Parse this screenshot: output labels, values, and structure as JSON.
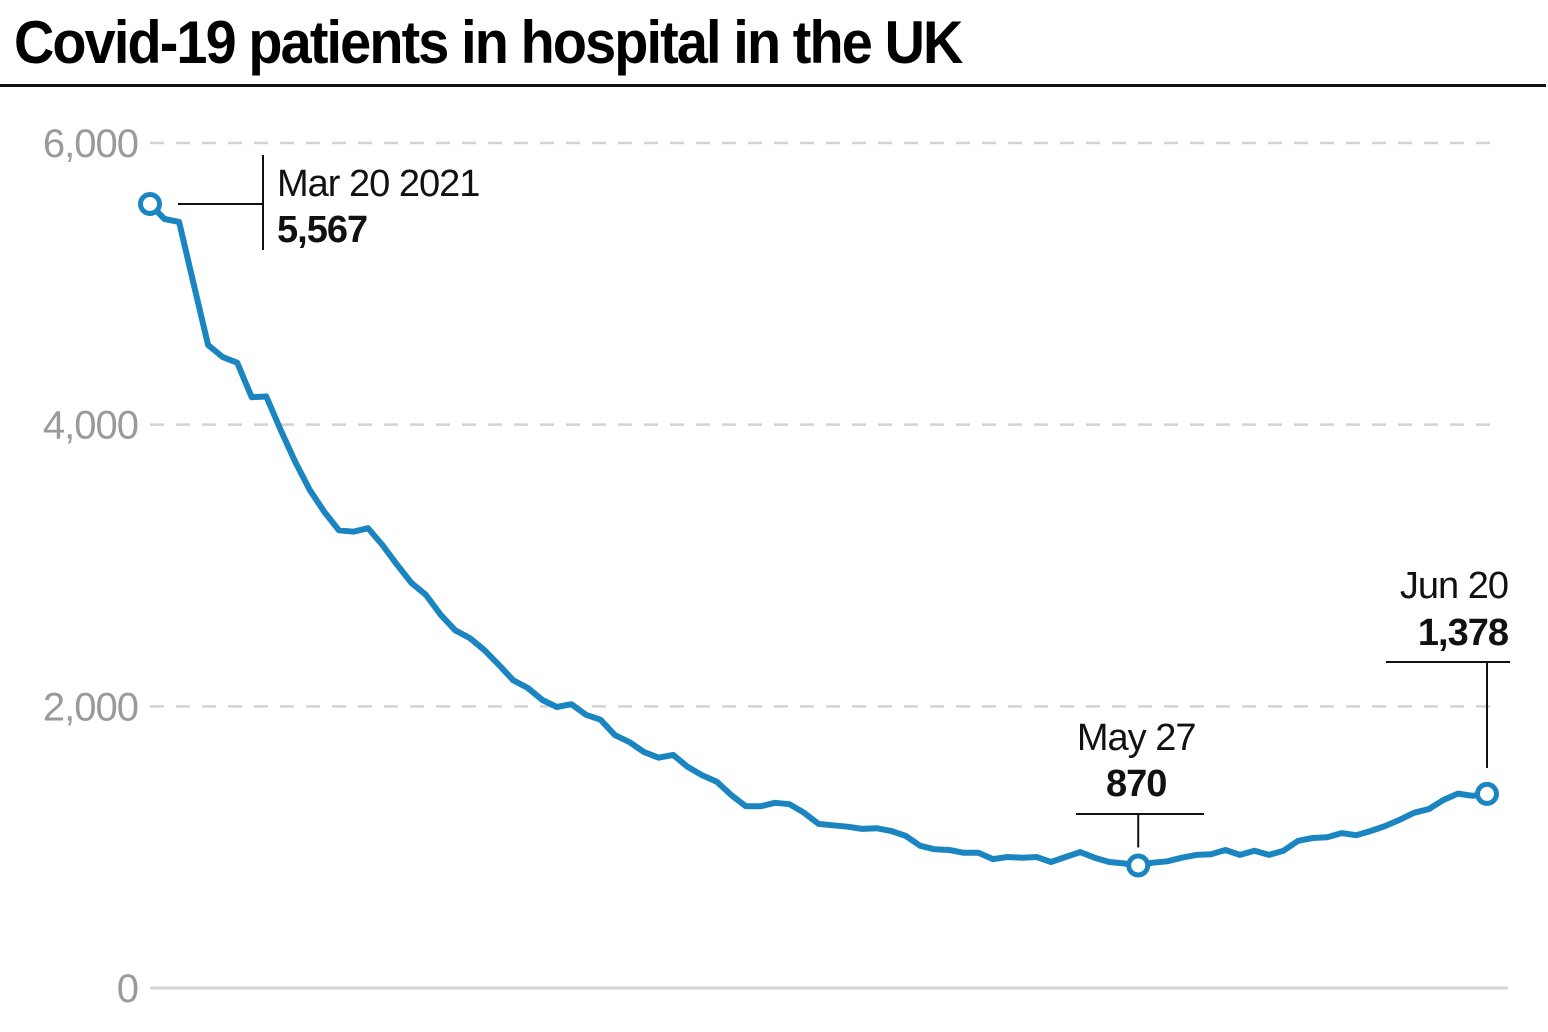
{
  "header": {
    "title": "Covid-19 patients in hospital in the UK"
  },
  "chart_data": {
    "type": "line",
    "title": "Covid-19 patients in hospital in the UK",
    "xlabel": "",
    "ylabel": "",
    "ylim": [
      0,
      6000
    ],
    "yticks": [
      0,
      2000,
      4000,
      6000
    ],
    "ytick_labels": [
      "0",
      "2,000",
      "4,000",
      "6,000"
    ],
    "grid": true,
    "line_color": "#1a85c0",
    "x_start": "Mar 20 2021",
    "x_end": "Jun 20 2021",
    "series": [
      {
        "name": "Covid-19 patients in hospital",
        "x_day_offset": [
          0,
          1,
          2,
          3,
          4,
          5,
          6,
          7,
          8,
          9,
          10,
          11,
          12,
          13,
          14,
          15,
          16,
          17,
          18,
          19,
          20,
          21,
          22,
          23,
          24,
          25,
          26,
          27,
          28,
          29,
          30,
          31,
          32,
          33,
          34,
          35,
          36,
          37,
          38,
          39,
          40,
          41,
          42,
          43,
          44,
          45,
          46,
          47,
          48,
          49,
          50,
          51,
          52,
          53,
          54,
          55,
          56,
          57,
          58,
          59,
          60,
          61,
          62,
          63,
          64,
          65,
          66,
          67,
          68,
          69,
          70,
          71,
          72,
          73,
          74,
          75,
          76,
          77,
          78,
          79,
          80,
          81,
          82,
          83,
          84,
          85,
          86,
          87,
          88,
          89,
          90,
          91,
          92
        ],
        "values": [
          5567,
          5460,
          5440,
          5000,
          4565,
          4480,
          4440,
          4195,
          4200,
          3960,
          3735,
          3535,
          3380,
          3250,
          3240,
          3265,
          3145,
          3005,
          2875,
          2790,
          2650,
          2540,
          2485,
          2400,
          2295,
          2185,
          2130,
          2045,
          1995,
          2015,
          1940,
          1905,
          1795,
          1745,
          1675,
          1635,
          1655,
          1570,
          1510,
          1465,
          1370,
          1290,
          1290,
          1315,
          1305,
          1245,
          1165,
          1155,
          1145,
          1130,
          1135,
          1115,
          1080,
          1010,
          985,
          980,
          960,
          960,
          915,
          930,
          925,
          930,
          895,
          930,
          965,
          925,
          895,
          885,
          870,
          890,
          900,
          925,
          945,
          950,
          980,
          945,
          975,
          945,
          975,
          1045,
          1065,
          1070,
          1100,
          1085,
          1115,
          1150,
          1195,
          1245,
          1270,
          1335,
          1380,
          1365,
          1378
        ]
      }
    ],
    "annotations": [
      {
        "day_offset": 0,
        "date": "Mar 20 2021",
        "value_label": "5,567",
        "value": 5567
      },
      {
        "day_offset": 68,
        "date": "May 27",
        "value_label": "870",
        "value": 870
      },
      {
        "day_offset": 92,
        "date": "Jun 20",
        "value_label": "1,378",
        "value": 1378
      }
    ]
  }
}
